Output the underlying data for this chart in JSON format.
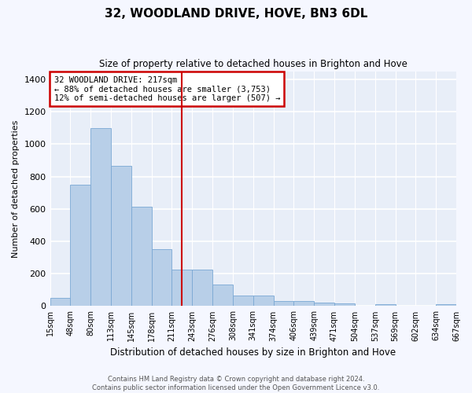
{
  "title": "32, WOODLAND DRIVE, HOVE, BN3 6DL",
  "subtitle": "Size of property relative to detached houses in Brighton and Hove",
  "xlabel": "Distribution of detached houses by size in Brighton and Hove",
  "ylabel": "Number of detached properties",
  "footer_line1": "Contains HM Land Registry data © Crown copyright and database right 2024.",
  "footer_line2": "Contains public sector information licensed under the Open Government Licence v3.0.",
  "annotation_line1": "32 WOODLAND DRIVE: 217sqm",
  "annotation_line2": "← 88% of detached houses are smaller (3,753)",
  "annotation_line3": "12% of semi-detached houses are larger (507) →",
  "vline_index": 6.5,
  "bar_color": "#b8cfe8",
  "bar_edgecolor": "#7aa8d4",
  "vline_color": "#cc0000",
  "annotation_box_edgecolor": "#cc0000",
  "plot_bg_color": "#e8eef8",
  "fig_bg_color": "#f5f7ff",
  "ylim": [
    0,
    1450
  ],
  "yticks": [
    0,
    200,
    400,
    600,
    800,
    1000,
    1200,
    1400
  ],
  "values": [
    50,
    750,
    1100,
    865,
    615,
    350,
    225,
    225,
    135,
    65,
    65,
    30,
    30,
    20,
    15,
    0,
    10,
    0,
    0,
    10
  ],
  "tick_labels": [
    "15sqm",
    "48sqm",
    "80sqm",
    "113sqm",
    "145sqm",
    "178sqm",
    "211sqm",
    "243sqm",
    "276sqm",
    "308sqm",
    "341sqm",
    "374sqm",
    "406sqm",
    "439sqm",
    "471sqm",
    "504sqm",
    "537sqm",
    "569sqm",
    "602sqm",
    "634sqm",
    "667sqm"
  ]
}
